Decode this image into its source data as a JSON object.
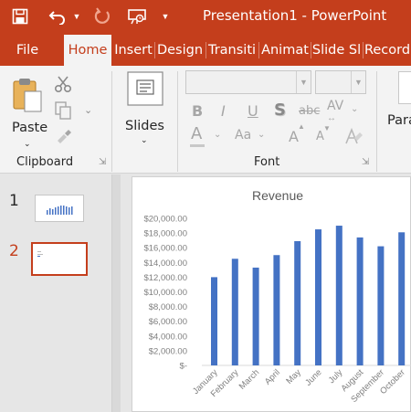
{
  "window": {
    "title": "Presentation1  -  PowerPoint"
  },
  "quick_access": {
    "icons": [
      "save-icon",
      "undo-icon",
      "undo-dropdown-icon",
      "redo-icon",
      "present-icon",
      "customize-qat-icon"
    ]
  },
  "tabs": [
    {
      "label": "File",
      "active": false
    },
    {
      "label": "Home",
      "active": true
    },
    {
      "label": "Insert",
      "active": false
    },
    {
      "label": "Design",
      "active": false
    },
    {
      "label": "Transiti",
      "active": false
    },
    {
      "label": "Animat",
      "active": false
    },
    {
      "label": "Slide Sl",
      "active": false
    },
    {
      "label": "Record",
      "active": false
    }
  ],
  "ribbon": {
    "clipboard": {
      "group_label": "Clipboard",
      "paste_label": "Paste"
    },
    "slides": {
      "new_slide_label": "Slides"
    },
    "font": {
      "group_label": "Font",
      "font_name": "",
      "font_size": "",
      "bold": "B",
      "italic": "I",
      "underline": "U",
      "shadow": "S",
      "strikethrough": "abc",
      "spacing": "AV",
      "font_color": "A",
      "change_case": "Aa",
      "grow": "A",
      "shrink": "A"
    },
    "paragraph": {
      "label_partial": "Para"
    }
  },
  "slides_pane": {
    "slides": [
      {
        "number": "1",
        "selected": false
      },
      {
        "number": "2",
        "selected": true
      }
    ]
  },
  "colors": {
    "accent": "#c43e1c",
    "ribbon_bg": "#f3f3f3",
    "bar": "#4472c4"
  },
  "chart_data": {
    "type": "bar",
    "title": "Revenue",
    "categories": [
      "January",
      "February",
      "March",
      "April",
      "May",
      "June",
      "July",
      "August",
      "September",
      "October"
    ],
    "values": [
      12000,
      14500,
      13300,
      15000,
      16900,
      18500,
      19000,
      17400,
      16200,
      18100
    ],
    "ylim": [
      0,
      20000
    ],
    "yticks": [
      "$-",
      "$2,000.00",
      "$4,000.00",
      "$6,000.00",
      "$8,000.00",
      "$10,000.00",
      "$12,000.00",
      "$14,000.00",
      "$16,000.00",
      "$18,000.00",
      "$20,000.00"
    ],
    "grid": false,
    "legend": "none"
  }
}
